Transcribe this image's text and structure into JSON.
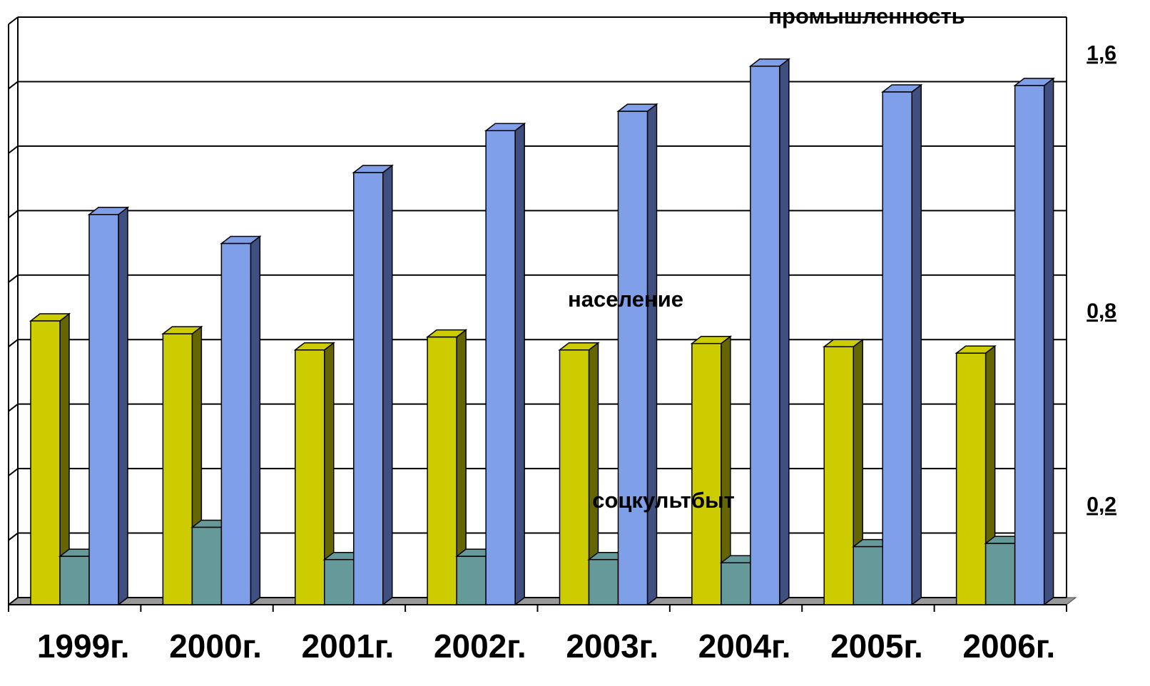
{
  "chart_data": {
    "type": "bar3d",
    "categories": [
      "1999г.",
      "2000г.",
      "2001г.",
      "2002г.",
      "2003г.",
      "2004г.",
      "2005г.",
      "2006г."
    ],
    "series": [
      {
        "name": "население",
        "color": "#cccc00",
        "side": "#666600",
        "values": [
          0.88,
          0.84,
          0.79,
          0.83,
          0.79,
          0.81,
          0.8,
          0.78
        ]
      },
      {
        "name": "соцкультбыт",
        "color": "#669999",
        "side": "#336666",
        "values": [
          0.15,
          0.24,
          0.14,
          0.15,
          0.14,
          0.13,
          0.18,
          0.19
        ]
      },
      {
        "name": "промышленность",
        "color": "#7f9fe8",
        "side": "#3f4f80",
        "values": [
          1.21,
          1.12,
          1.34,
          1.47,
          1.53,
          1.67,
          1.59,
          1.61
        ]
      }
    ],
    "ylim": [
      0,
      1.8
    ],
    "yticks": [
      {
        "value": 0,
        "label": null
      },
      {
        "value": 0.2,
        "label": "0,2"
      },
      {
        "value": 0.4,
        "label": null
      },
      {
        "value": 0.6,
        "label": null
      },
      {
        "value": 0.8,
        "label": "0,8"
      },
      {
        "value": 1.0,
        "label": null
      },
      {
        "value": 1.2,
        "label": null
      },
      {
        "value": 1.4,
        "label": null
      },
      {
        "value": 1.6,
        "label": "1,6"
      },
      {
        "value": 1.8,
        "label": null
      }
    ],
    "grid": true
  }
}
